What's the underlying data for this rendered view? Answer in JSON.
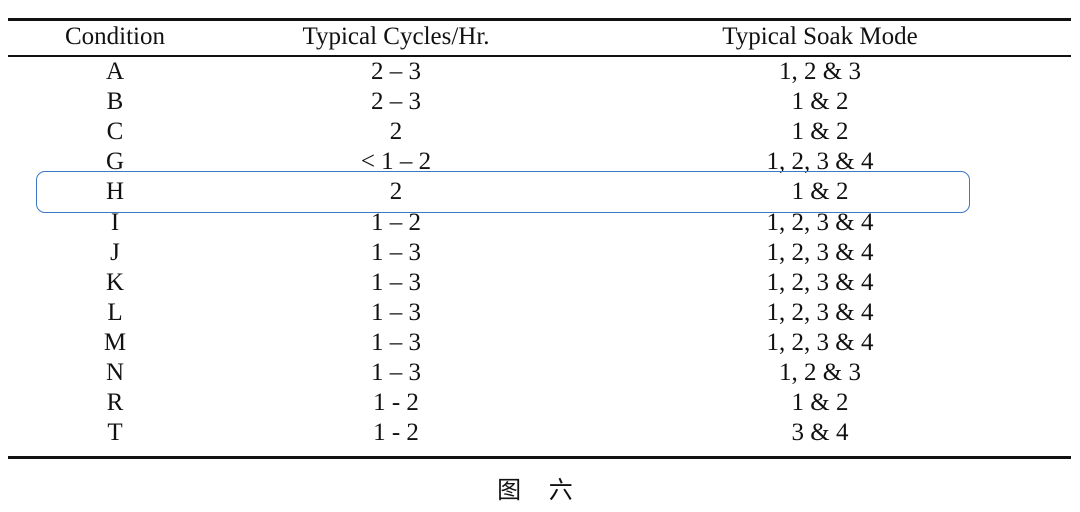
{
  "table": {
    "headers": [
      "Condition",
      "Typical Cycles/Hr.",
      "Typical Soak Mode"
    ],
    "rows": [
      [
        "A",
        "2 – 3",
        "1, 2 & 3"
      ],
      [
        "B",
        "2 – 3",
        "1 & 2"
      ],
      [
        "C",
        "2",
        "1 & 2"
      ],
      [
        "G",
        "< 1 – 2",
        "1, 2, 3 & 4"
      ],
      [
        "H",
        "2",
        "1 & 2"
      ],
      [
        "I",
        "1 – 2",
        "1, 2, 3 & 4"
      ],
      [
        "J",
        "1 – 3",
        "1, 2, 3 & 4"
      ],
      [
        "K",
        "1 – 3",
        "1, 2, 3 & 4"
      ],
      [
        "L",
        "1 – 3",
        "1, 2, 3 & 4"
      ],
      [
        "M",
        "1 – 3",
        "1, 2, 3 & 4"
      ],
      [
        "N",
        "1 – 3",
        "1, 2 & 3"
      ],
      [
        "R",
        "1 - 2",
        "1 & 2"
      ],
      [
        "T",
        "1 - 2",
        "3 & 4"
      ]
    ],
    "highlighted_row": "H",
    "highlight_color": "#3a78c8"
  },
  "caption": "图 六"
}
